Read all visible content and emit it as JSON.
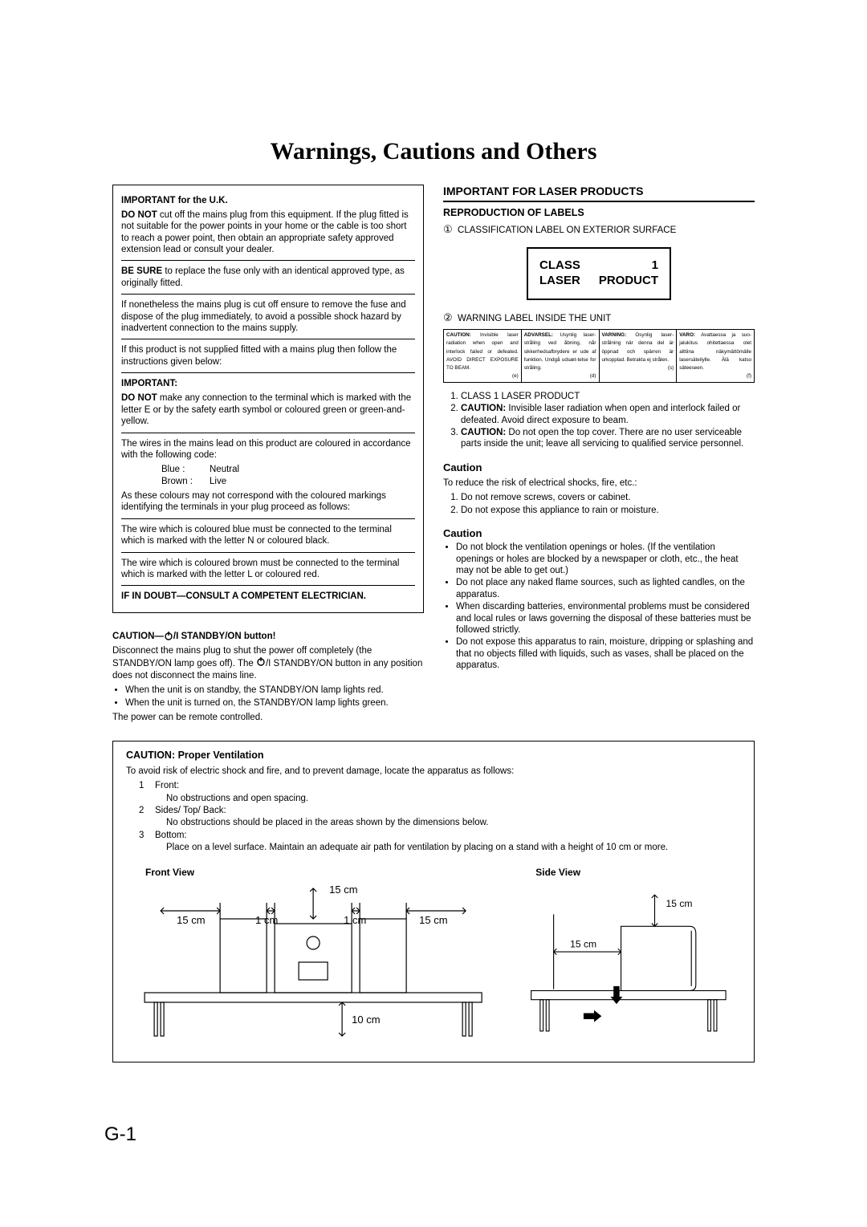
{
  "title": "Warnings, Cautions and Others",
  "uk": {
    "heading": "IMPORTANT for the U.K.",
    "p1a": "DO NOT",
    "p1b": " cut off the mains plug from this equipment. If the plug fitted is not suitable for the power points in your home or the cable is too short to reach a power point, then obtain an appropriate safety approved extension lead or consult your dealer.",
    "p2a": "BE SURE",
    "p2b": " to replace the fuse only with an identical approved type, as originally fitted.",
    "p3": "If nonetheless the mains plug is cut off ensure to remove the fuse and dispose of the plug immediately, to avoid a possible shock hazard by inadvertent connection to the mains supply.",
    "p4": "If this product is not supplied fitted with a mains plug then follow the instructions given below:",
    "imp": "IMPORTANT:",
    "p5a": "DO NOT",
    "p5b": " make any connection to the terminal which is marked with the letter E or by the safety earth symbol or coloured green or green-and-yellow.",
    "p6": "The wires in the mains lead on this product are coloured in accordance with the following code:",
    "blue_l": "Blue :",
    "blue_r": "Neutral",
    "brown_l": "Brown :",
    "brown_r": "Live",
    "p7": "As these colours may not correspond with the coloured markings identifying the terminals in your plug proceed as follows:",
    "p8": "The wire which is coloured blue must be connected to the terminal which is marked with the letter N or coloured black.",
    "p9": "The wire which is coloured brown must be connected to the terminal which is marked with the letter L or coloured red.",
    "p10": "IF IN DOUBT—CONSULT A COMPETENT ELECTRICIAN."
  },
  "standby": {
    "heading_pre": "CAUTION—",
    "heading_post": " STANDBY/ON button!",
    "p1_pre": "Disconnect the mains plug to shut the power off completely (the STANDBY/ON lamp goes off). The ",
    "p1_post": " STANDBY/ON button in any position does not disconnect the mains line.",
    "b1": "When the unit is on standby, the STANDBY/ON lamp lights red.",
    "b2": "When the unit is turned on, the STANDBY/ON lamp lights green.",
    "p2": "The power can be remote controlled."
  },
  "laser": {
    "heading": "IMPORTANT FOR LASER PRODUCTS",
    "sub": "REPRODUCTION OF LABELS",
    "l1_num": "①",
    "l1": "CLASSIFICATION LABEL ON EXTERIOR SURFACE",
    "box": {
      "a1": "CLASS",
      "a2": "1",
      "b1": "LASER",
      "b2": "PRODUCT"
    },
    "l2_num": "②",
    "l2": "WARNING LABEL INSIDE THE UNIT",
    "warn_cells": [
      {
        "main": "CAUTION: Invisible laser radiation when open and interlock failed or defeated. AVOID DIRECT EXPOSURE TO BEAM.",
        "suffix": "(e)",
        "bold": "CAUTION:"
      },
      {
        "main": "ADVARSEL: Usynlig laser-stråling ved åbning, når sikkerhedsafbrydere er ude af funktion. Undgå udsæt-telse for stråling.",
        "suffix": "(d)",
        "bold": "ADVARSEL:"
      },
      {
        "main": "VARNING: Osynlig laser-strålning när denna del är öppnad och spärren är urkopplad. Betrakta ej strålen.",
        "suffix": "(s)",
        "bold": "VARNING:"
      },
      {
        "main": "VARO: Avattaessa ja suo-jalukitus ohitettaessa olet alttiina näkymättömälle lasersäteilylle. Älä katso säteeseen.",
        "suffix": "(f)",
        "bold": "VARO:"
      }
    ],
    "item1": "CLASS 1 LASER PRODUCT",
    "item2a": "CAUTION:",
    "item2b": " Invisible laser radiation when open and interlock failed or defeated. Avoid direct exposure to beam.",
    "item3a": "CAUTION:",
    "item3b": " Do not open the top cover. There are no user serviceable parts inside the unit; leave all servicing to qualified service personnel."
  },
  "caution1": {
    "h": "Caution",
    "p1": "To reduce the risk of electrical shocks, fire, etc.:",
    "i1": "Do not remove screws, covers or cabinet.",
    "i2": "Do not expose this appliance to rain or moisture."
  },
  "caution2": {
    "h": "Caution",
    "b1": "Do not block the ventilation openings or holes. (If the ventilation openings or holes are blocked by a newspaper or cloth, etc., the heat may not be able to get out.)",
    "b2": "Do not place any naked flame sources, such as lighted candles, on the apparatus.",
    "b3": "When discarding batteries, environmental problems must be considered and local rules or laws governing the disposal of these batteries must be followed strictly.",
    "b4": "Do not expose this apparatus to rain, moisture, dripping or splashing and that no objects filled with liquids, such as vases, shall be placed on the apparatus."
  },
  "vent": {
    "h": "CAUTION: Proper Ventilation",
    "intro": "To avoid risk of electric shock and fire, and to prevent damage, locate the apparatus as follows:",
    "i1n": "1",
    "i1l": "Front:",
    "i1d": "No obstructions and open spacing.",
    "i2n": "2",
    "i2l": "Sides/ Top/ Back:",
    "i2d": "No obstructions should be placed in the areas shown by the dimensions below.",
    "i3n": "3",
    "i3l": "Bottom:",
    "i3d": "Place on a level surface. Maintain an adequate air path for ventilation by placing on a stand with a height of 10 cm or more.",
    "front": "Front View",
    "side": "Side View",
    "d15": "15 cm",
    "d1": "1 cm",
    "d10": "10 cm"
  },
  "pagenum": "G-1",
  "style": {
    "line_color": "#000000",
    "stroke_width": 1.2,
    "font_size_dim": 13
  }
}
